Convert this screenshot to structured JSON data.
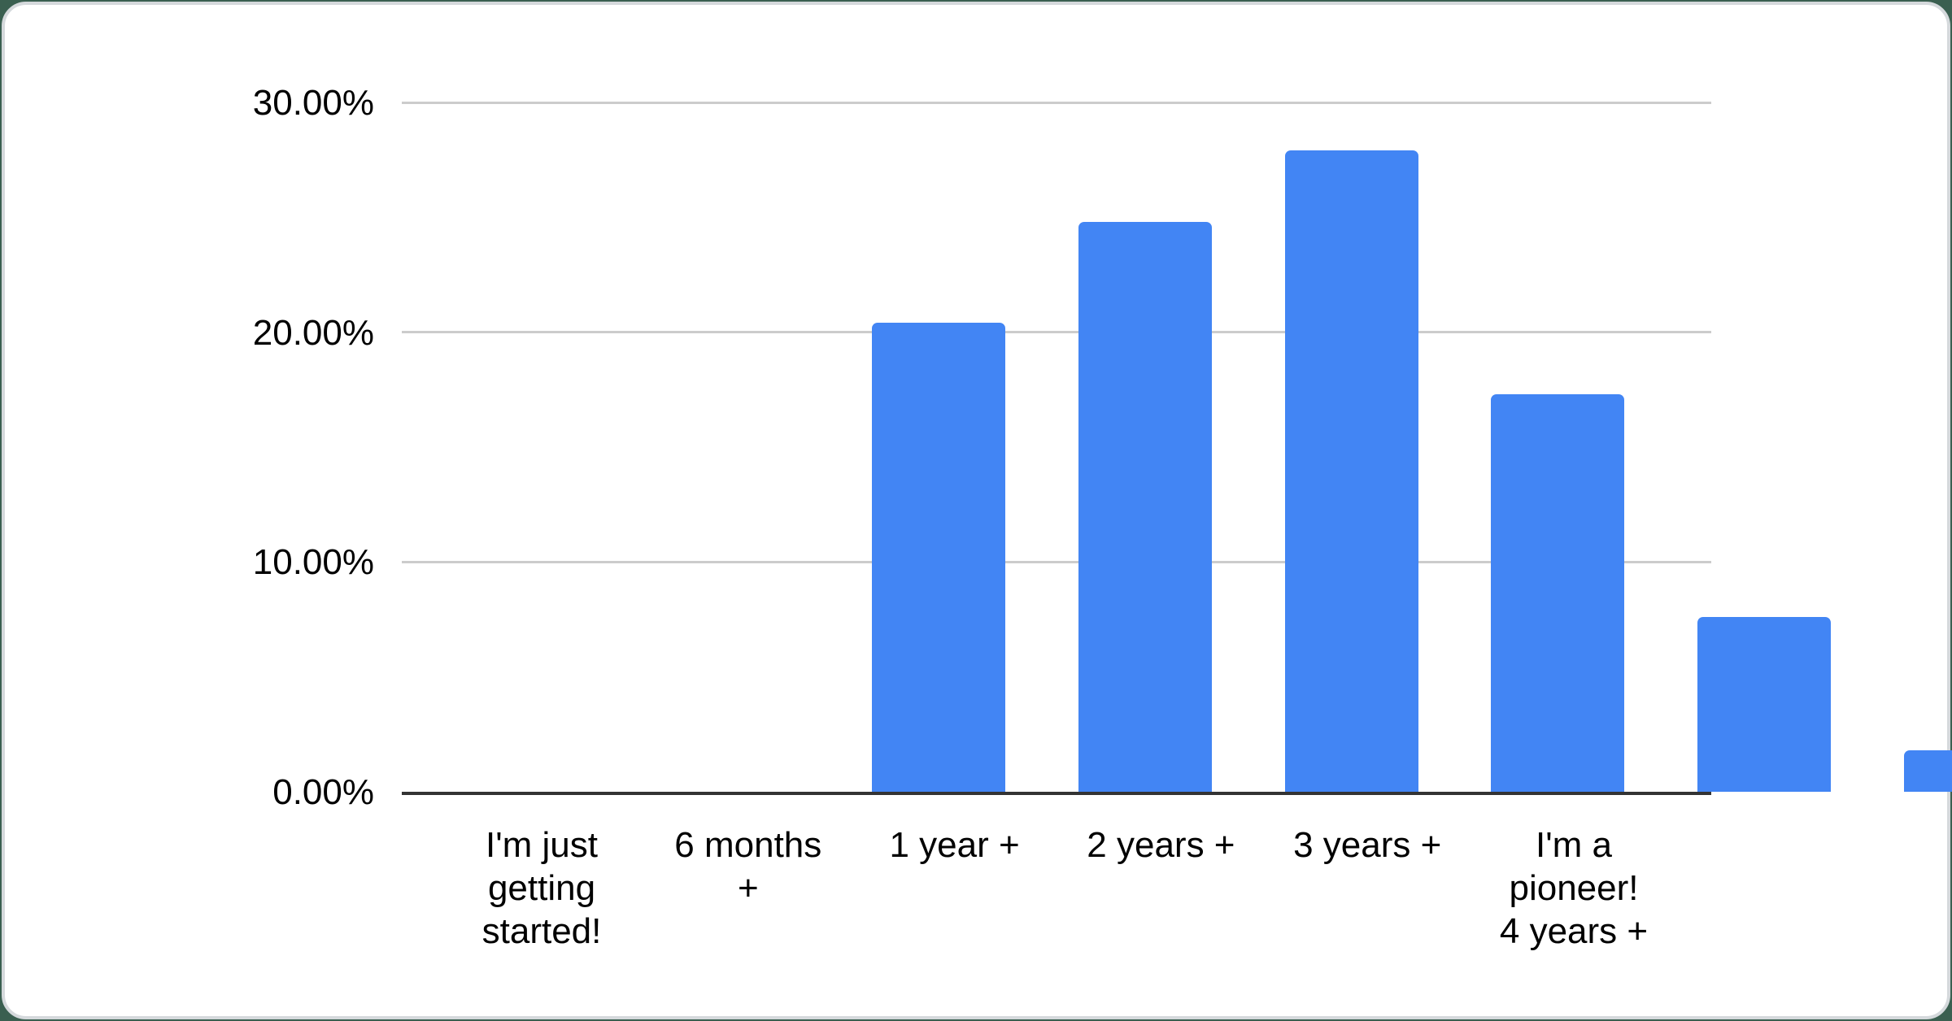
{
  "page": {
    "background_color": "#3a5f50",
    "card_background": "#ffffff",
    "card_border_color": "#d5d9dc"
  },
  "chart_data": {
    "type": "bar",
    "title": "",
    "xlabel": "",
    "ylabel": "",
    "categories": [
      "I'm just getting started!",
      "6 months +",
      "1 year +",
      "2 years +",
      "3 years +",
      "I'm a pioneer! 4 years +"
    ],
    "xtick_lines": [
      [
        "I'm just",
        "getting",
        "started!"
      ],
      [
        "6 months",
        "+"
      ],
      [
        "1 year +"
      ],
      [
        "2 years +"
      ],
      [
        "3 years +"
      ],
      [
        "I'm a",
        "pioneer!",
        "4 years +"
      ]
    ],
    "values": [
      20.4,
      24.8,
      27.9,
      17.3,
      7.6,
      1.8
    ],
    "value_unit": "%",
    "ylim": [
      0,
      30
    ],
    "yticks": [
      {
        "value": 0,
        "label": "0.00%"
      },
      {
        "value": 10,
        "label": "10.00%"
      },
      {
        "value": 20,
        "label": "20.00%"
      },
      {
        "value": 30,
        "label": "30.00%"
      }
    ],
    "grid": true,
    "legend": "none",
    "bar_color": "#4285f4",
    "gridline_color": "#cccccc",
    "axis_line_color": "#333333",
    "tick_text_color": "#000000"
  }
}
